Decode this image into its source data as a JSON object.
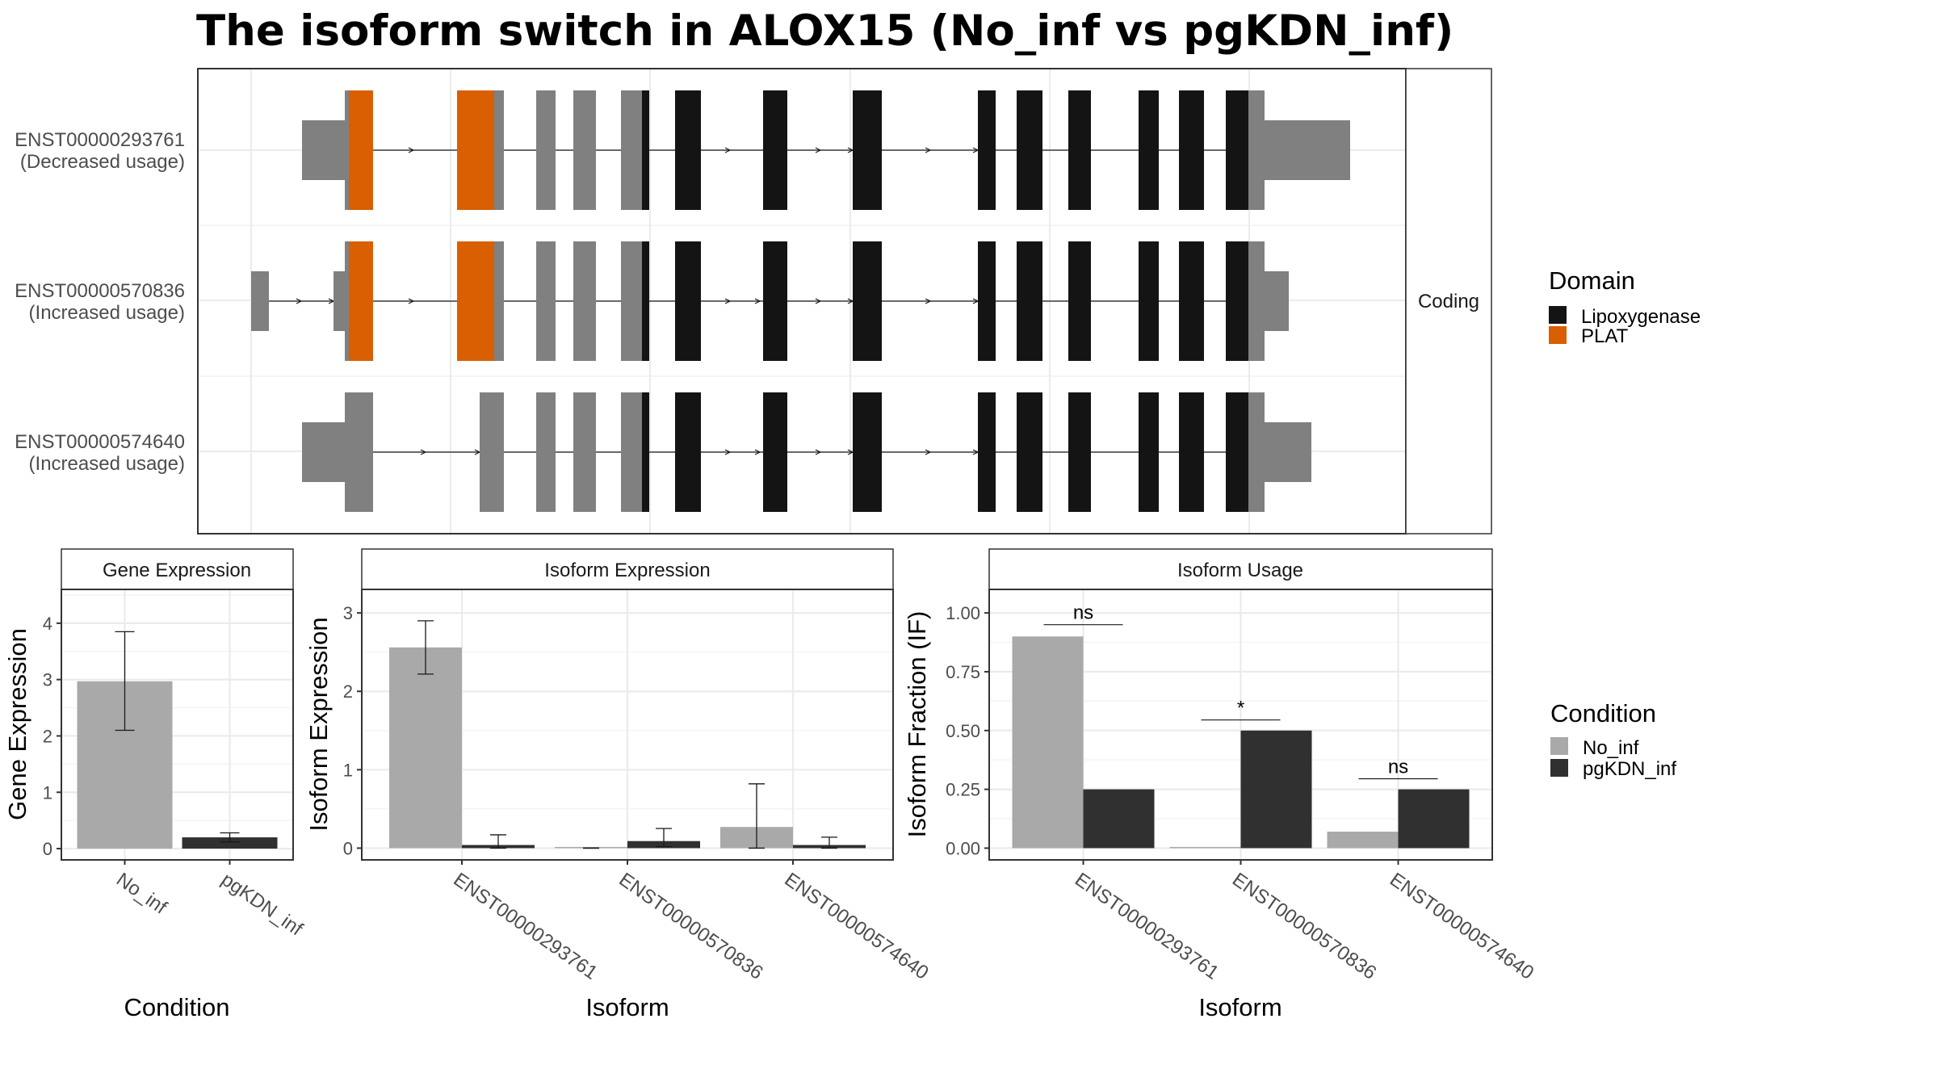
{
  "title": "The isoform switch in ALOX15 (No_inf vs pgKDN_inf)",
  "colors": {
    "utr": "#808080",
    "lipoxygenase": "#141414",
    "plat": "#d95f02",
    "no_inf": "#a9a9a9",
    "pgkdn_inf": "#303030",
    "grid": "#ebebeb",
    "strip": "#ffffff"
  },
  "structure": {
    "strip_label": "Coding",
    "isoforms": [
      {
        "id": "ENST00000293761",
        "usage": "(Decreased usage)"
      },
      {
        "id": "ENST00000570836",
        "usage": "(Increased usage)"
      },
      {
        "id": "ENST00000574640",
        "usage": "(Increased usage)"
      }
    ],
    "legend": {
      "title": "Domain",
      "items": [
        {
          "label": "Lipoxygenase",
          "color": "#141414"
        },
        {
          "label": "PLAT",
          "color": "#d95f02"
        }
      ]
    }
  },
  "chart_data": [
    {
      "type": "bar",
      "title": "Gene Expression",
      "xlabel": "Condition",
      "ylabel": "Gene Expression",
      "categories": [
        "No_inf",
        "pgKDN_inf"
      ],
      "values": [
        2.97,
        0.2
      ],
      "errors": [
        [
          2.1,
          3.85
        ],
        [
          0.12,
          0.28
        ]
      ],
      "ylim": [
        -0.2,
        4.6
      ],
      "yticks": [
        0,
        1,
        2,
        3,
        4
      ]
    },
    {
      "type": "bar",
      "title": "Isoform Expression",
      "xlabel": "Isoform",
      "ylabel": "Isoform Expression",
      "categories": [
        "ENST00000293761",
        "ENST00000570836",
        "ENST00000574640"
      ],
      "series": [
        {
          "name": "No_inf",
          "values": [
            2.56,
            0.0,
            0.27
          ],
          "errors": [
            [
              2.22,
              2.9
            ],
            [
              0.0,
              0.0
            ],
            [
              0.0,
              0.82
            ]
          ]
        },
        {
          "name": "pgKDN_inf",
          "values": [
            0.04,
            0.09,
            0.04
          ],
          "errors": [
            [
              0.0,
              0.17
            ],
            [
              0.02,
              0.25
            ],
            [
              0.0,
              0.14
            ]
          ]
        }
      ],
      "ylim": [
        -0.15,
        3.3
      ],
      "yticks": [
        0,
        1,
        2,
        3
      ]
    },
    {
      "type": "bar",
      "title": "Isoform Usage",
      "xlabel": "Isoform",
      "ylabel": "Isoform Fraction (IF)",
      "categories": [
        "ENST00000293761",
        "ENST00000570836",
        "ENST00000574640"
      ],
      "series": [
        {
          "name": "No_inf",
          "values": [
            0.9,
            0.0,
            0.07
          ]
        },
        {
          "name": "pgKDN_inf",
          "values": [
            0.25,
            0.5,
            0.25
          ]
        }
      ],
      "significance": [
        {
          "label": "ns",
          "y": 0.95
        },
        {
          "label": "*",
          "y": 0.545
        },
        {
          "label": "ns",
          "y": 0.295
        }
      ],
      "ylim": [
        -0.05,
        1.1
      ],
      "yticks": [
        "0.00",
        "0.25",
        "0.50",
        "0.75",
        "1.00"
      ]
    }
  ],
  "condition_legend": {
    "title": "Condition",
    "items": [
      {
        "label": "No_inf",
        "color": "#a9a9a9"
      },
      {
        "label": "pgKDN_inf",
        "color": "#303030"
      }
    ]
  }
}
